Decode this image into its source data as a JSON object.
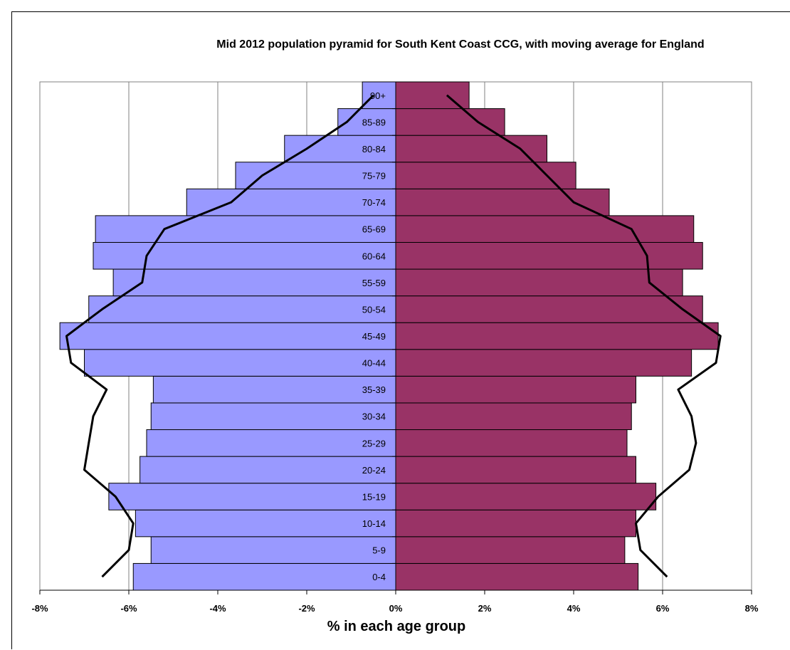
{
  "chart_data": {
    "type": "bar",
    "orientation": "horizontal-pyramid",
    "title": "Mid 2012 population pyramid for South Kent Coast CCG, with moving average for England",
    "xlabel": "% in each age group",
    "xlim": [
      -8,
      8
    ],
    "x_ticks": [
      "-8%",
      "-6%",
      "-4%",
      "-2%",
      "0%",
      "2%",
      "4%",
      "6%",
      "8%"
    ],
    "x_tick_values": [
      -8,
      -6,
      -4,
      -2,
      0,
      2,
      4,
      6,
      8
    ],
    "grid": "vertical",
    "categories": [
      "0-4",
      "5-9",
      "10-14",
      "15-19",
      "20-24",
      "25-29",
      "30-34",
      "35-39",
      "40-44",
      "45-49",
      "50-54",
      "55-59",
      "60-64",
      "65-69",
      "70-74",
      "75-79",
      "80-84",
      "85-89",
      "90+"
    ],
    "series": [
      {
        "kind": "bar",
        "color": "#9999ff",
        "values": [
          -5.9,
          -5.5,
          -5.85,
          -6.45,
          -5.75,
          -5.6,
          -5.5,
          -5.45,
          -7.0,
          -7.55,
          -6.9,
          -6.35,
          -6.8,
          -6.75,
          -4.7,
          -3.6,
          -2.5,
          -1.3,
          -0.75
        ]
      },
      {
        "kind": "bar",
        "color": "#993366",
        "values": [
          5.45,
          5.15,
          5.4,
          5.85,
          5.4,
          5.2,
          5.3,
          5.4,
          6.65,
          7.25,
          6.9,
          6.45,
          6.9,
          6.7,
          4.8,
          4.05,
          3.4,
          2.45,
          1.65
        ]
      },
      {
        "kind": "line",
        "color": "#000000",
        "values": [
          -6.6,
          -6.0,
          -5.9,
          -6.3,
          -7.0,
          -6.9,
          -6.8,
          -6.5,
          -7.3,
          -7.4,
          -6.6,
          -5.7,
          -5.6,
          -5.2,
          -3.7,
          -3.0,
          -2.0,
          -1.1,
          -0.5
        ]
      },
      {
        "kind": "line",
        "color": "#000000",
        "values": [
          6.1,
          5.5,
          5.4,
          5.9,
          6.6,
          6.75,
          6.65,
          6.35,
          7.2,
          7.3,
          6.45,
          5.7,
          5.65,
          5.3,
          4.0,
          3.4,
          2.8,
          1.85,
          1.15
        ]
      }
    ]
  }
}
